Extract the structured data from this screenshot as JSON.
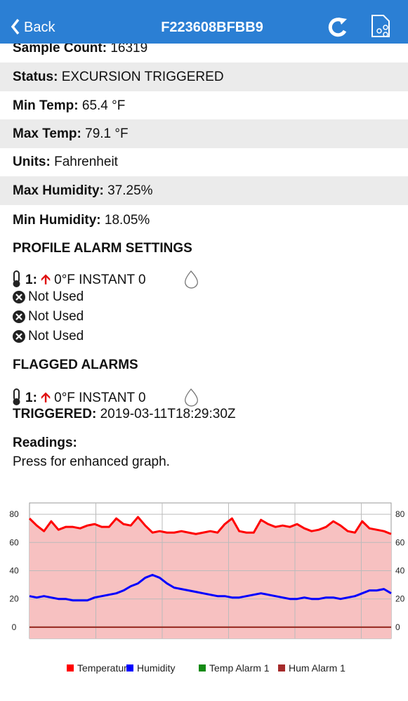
{
  "header": {
    "back": "Back",
    "title": "F223608BFBB9"
  },
  "rows": [
    {
      "label": "Sample Count:",
      "value": "16319"
    },
    {
      "label": "Status:",
      "value": "EXCURSION TRIGGERED"
    },
    {
      "label": "Min Temp:",
      "value": "65.4 °F"
    },
    {
      "label": "Max Temp:",
      "value": "79.1 °F"
    },
    {
      "label": "Units:",
      "value": "Fahrenheit"
    },
    {
      "label": "Max Humidity:",
      "value": "37.25%"
    },
    {
      "label": "Min Humidity:",
      "value": "18.05%"
    }
  ],
  "profile": {
    "heading": "PROFILE ALARM SETTINGS",
    "alarm": {
      "label": "1:",
      "text": "0°F INSTANT 0"
    },
    "unused": [
      "Not Used",
      "Not Used",
      "Not Used"
    ]
  },
  "flagged": {
    "heading": "FLAGGED ALARMS",
    "alarm": {
      "label": "1:",
      "text": "0°F INSTANT 0"
    },
    "triggered": {
      "label": "TRIGGERED:",
      "value": "2019-03-11T18:29:30Z"
    }
  },
  "readings": {
    "label": "Readings:",
    "hint": "Press for enhanced graph."
  },
  "chart_data": {
    "type": "line",
    "ylim": [
      -8,
      88
    ],
    "yticks": [
      0,
      20,
      40,
      60,
      80
    ],
    "y2lim": [
      -8,
      88
    ],
    "y2ticks": [
      0,
      20,
      40,
      60,
      80
    ],
    "grid": true,
    "series": [
      {
        "name": "Temperature",
        "color": "#ff0000",
        "area_color": "#f7c1c1",
        "values": [
          77,
          72,
          68,
          75,
          69,
          71,
          71,
          70,
          72,
          73,
          71,
          71,
          77,
          73,
          72,
          78,
          72,
          67,
          68,
          67,
          67,
          68,
          67,
          66,
          67,
          68,
          67,
          73,
          77,
          68,
          67,
          67,
          76,
          73,
          71,
          72,
          71,
          73,
          70,
          68,
          69,
          71,
          75,
          72,
          68,
          67,
          75,
          70,
          69,
          68,
          66
        ]
      },
      {
        "name": "Humidity",
        "color": "#0000ff",
        "values": [
          22,
          21,
          22,
          21,
          20,
          20,
          19,
          19,
          19,
          21,
          22,
          23,
          24,
          26,
          29,
          31,
          35,
          37,
          35,
          31,
          28,
          27,
          26,
          25,
          24,
          23,
          22,
          22,
          21,
          21,
          22,
          23,
          24,
          23,
          22,
          21,
          20,
          20,
          21,
          20,
          20,
          21,
          21,
          20,
          21,
          22,
          24,
          26,
          26,
          27,
          24
        ]
      },
      {
        "name": "Temp Alarm 1",
        "color": "#138a13",
        "values": [
          0
        ]
      },
      {
        "name": "Hum Alarm 1",
        "color": "#a52a2a",
        "values": [
          0
        ]
      }
    ]
  }
}
